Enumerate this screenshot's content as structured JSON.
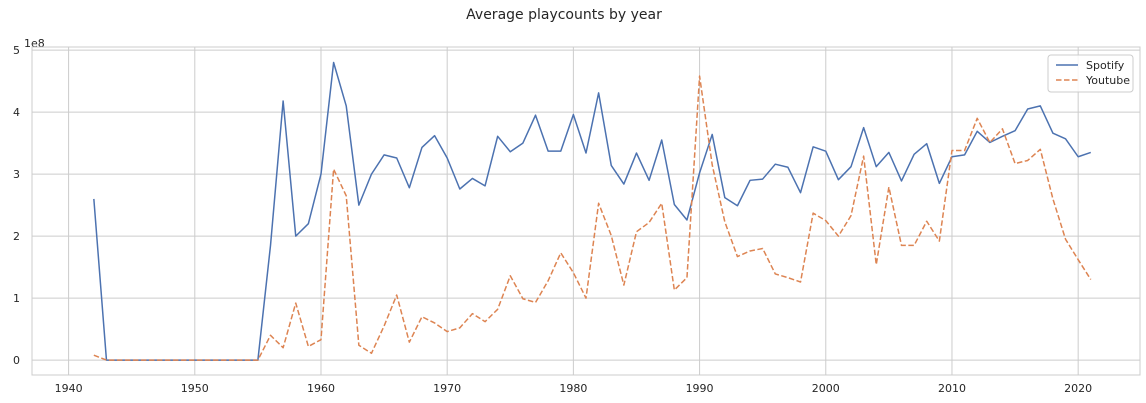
{
  "chart_data": {
    "type": "line",
    "title": "Average playcounts by year",
    "xlabel": "",
    "ylabel": "",
    "y_offset_label": "1e8",
    "xlim": [
      1937.1,
      2024.9
    ],
    "ylim": [
      -0.24,
      5.05
    ],
    "x_ticks": [
      1940,
      1950,
      1960,
      1970,
      1980,
      1990,
      2000,
      2010,
      2020
    ],
    "y_ticks": [
      0,
      1,
      2,
      3,
      4,
      5
    ],
    "x_tick_labels": [
      "1940",
      "1950",
      "1960",
      "1970",
      "1980",
      "1990",
      "2000",
      "2010",
      "2020"
    ],
    "y_tick_labels": [
      "0",
      "1",
      "2",
      "3",
      "4",
      "5"
    ],
    "grid": true,
    "legend_position": "top-right",
    "series": [
      {
        "name": "Spotify",
        "color": "#4c72b0",
        "style": "solid",
        "points": [
          [
            1942,
            2.6
          ],
          [
            1943,
            0.0
          ],
          [
            1944,
            0.0
          ],
          [
            1945,
            0.0
          ],
          [
            1946,
            0.0
          ],
          [
            1947,
            0.0
          ],
          [
            1948,
            0.0
          ],
          [
            1949,
            0.0
          ],
          [
            1950,
            0.0
          ],
          [
            1951,
            0.0
          ],
          [
            1952,
            0.0
          ],
          [
            1953,
            0.0
          ],
          [
            1954,
            0.0
          ],
          [
            1955,
            0.0
          ],
          [
            1956,
            1.85
          ],
          [
            1957,
            4.18
          ],
          [
            1958,
            2.0
          ],
          [
            1959,
            2.2
          ],
          [
            1960,
            3.0
          ],
          [
            1961,
            4.8
          ],
          [
            1962,
            4.1
          ],
          [
            1963,
            2.5
          ],
          [
            1964,
            3.0
          ],
          [
            1965,
            3.31
          ],
          [
            1966,
            3.26
          ],
          [
            1967,
            2.78
          ],
          [
            1968,
            3.43
          ],
          [
            1969,
            3.62
          ],
          [
            1970,
            3.26
          ],
          [
            1971,
            2.76
          ],
          [
            1972,
            2.93
          ],
          [
            1973,
            2.81
          ],
          [
            1974,
            3.61
          ],
          [
            1975,
            3.36
          ],
          [
            1976,
            3.5
          ],
          [
            1977,
            3.95
          ],
          [
            1978,
            3.37
          ],
          [
            1979,
            3.37
          ],
          [
            1980,
            3.96
          ],
          [
            1981,
            3.34
          ],
          [
            1982,
            4.31
          ],
          [
            1983,
            3.14
          ],
          [
            1984,
            2.84
          ],
          [
            1985,
            3.34
          ],
          [
            1986,
            2.9
          ],
          [
            1987,
            3.55
          ],
          [
            1988,
            2.51
          ],
          [
            1989,
            2.26
          ],
          [
            1990,
            3.02
          ],
          [
            1991,
            3.64
          ],
          [
            1992,
            2.62
          ],
          [
            1993,
            2.49
          ],
          [
            1994,
            2.9
          ],
          [
            1995,
            2.92
          ],
          [
            1996,
            3.16
          ],
          [
            1997,
            3.11
          ],
          [
            1998,
            2.7
          ],
          [
            1999,
            3.44
          ],
          [
            2000,
            3.37
          ],
          [
            2001,
            2.91
          ],
          [
            2002,
            3.12
          ],
          [
            2003,
            3.75
          ],
          [
            2004,
            3.12
          ],
          [
            2005,
            3.35
          ],
          [
            2006,
            2.89
          ],
          [
            2007,
            3.32
          ],
          [
            2008,
            3.49
          ],
          [
            2009,
            2.85
          ],
          [
            2010,
            3.28
          ],
          [
            2011,
            3.31
          ],
          [
            2012,
            3.69
          ],
          [
            2013,
            3.51
          ],
          [
            2014,
            3.61
          ],
          [
            2015,
            3.7
          ],
          [
            2016,
            4.05
          ],
          [
            2017,
            4.1
          ],
          [
            2018,
            3.66
          ],
          [
            2019,
            3.57
          ],
          [
            2020,
            3.28
          ],
          [
            2021,
            3.35
          ]
        ]
      },
      {
        "name": "Youtube",
        "color": "#dd8452",
        "style": "dashed",
        "points": [
          [
            1942,
            0.08
          ],
          [
            1943,
            0.0
          ],
          [
            1944,
            0.0
          ],
          [
            1945,
            0.0
          ],
          [
            1946,
            0.0
          ],
          [
            1947,
            0.0
          ],
          [
            1948,
            0.0
          ],
          [
            1949,
            0.0
          ],
          [
            1950,
            0.0
          ],
          [
            1951,
            0.0
          ],
          [
            1952,
            0.0
          ],
          [
            1953,
            0.0
          ],
          [
            1954,
            0.0
          ],
          [
            1955,
            0.0
          ],
          [
            1956,
            0.4
          ],
          [
            1957,
            0.2
          ],
          [
            1958,
            0.92
          ],
          [
            1959,
            0.22
          ],
          [
            1960,
            0.33
          ],
          [
            1961,
            3.08
          ],
          [
            1962,
            2.65
          ],
          [
            1963,
            0.24
          ],
          [
            1964,
            0.11
          ],
          [
            1965,
            0.55
          ],
          [
            1966,
            1.05
          ],
          [
            1967,
            0.29
          ],
          [
            1968,
            0.7
          ],
          [
            1969,
            0.6
          ],
          [
            1970,
            0.46
          ],
          [
            1971,
            0.52
          ],
          [
            1972,
            0.75
          ],
          [
            1973,
            0.62
          ],
          [
            1974,
            0.82
          ],
          [
            1975,
            1.36
          ],
          [
            1976,
            0.99
          ],
          [
            1977,
            0.93
          ],
          [
            1978,
            1.28
          ],
          [
            1979,
            1.73
          ],
          [
            1980,
            1.41
          ],
          [
            1981,
            1.0
          ],
          [
            1982,
            2.53
          ],
          [
            1983,
            2.01
          ],
          [
            1984,
            1.21
          ],
          [
            1985,
            2.07
          ],
          [
            1986,
            2.22
          ],
          [
            1987,
            2.53
          ],
          [
            1988,
            1.13
          ],
          [
            1989,
            1.33
          ],
          [
            1990,
            4.58
          ],
          [
            1991,
            3.15
          ],
          [
            1992,
            2.23
          ],
          [
            1993,
            1.67
          ],
          [
            1994,
            1.76
          ],
          [
            1995,
            1.8
          ],
          [
            1996,
            1.39
          ],
          [
            1997,
            1.33
          ],
          [
            1998,
            1.26
          ],
          [
            1999,
            2.37
          ],
          [
            2000,
            2.25
          ],
          [
            2001,
            2.0
          ],
          [
            2002,
            2.33
          ],
          [
            2003,
            3.29
          ],
          [
            2004,
            1.54
          ],
          [
            2005,
            2.79
          ],
          [
            2006,
            1.85
          ],
          [
            2007,
            1.85
          ],
          [
            2008,
            2.24
          ],
          [
            2009,
            1.92
          ],
          [
            2010,
            3.38
          ],
          [
            2011,
            3.38
          ],
          [
            2012,
            3.9
          ],
          [
            2013,
            3.51
          ],
          [
            2014,
            3.73
          ],
          [
            2015,
            3.17
          ],
          [
            2016,
            3.22
          ],
          [
            2017,
            3.4
          ],
          [
            2018,
            2.6
          ],
          [
            2019,
            1.95
          ],
          [
            2020,
            1.62
          ],
          [
            2021,
            1.3
          ]
        ]
      }
    ]
  }
}
